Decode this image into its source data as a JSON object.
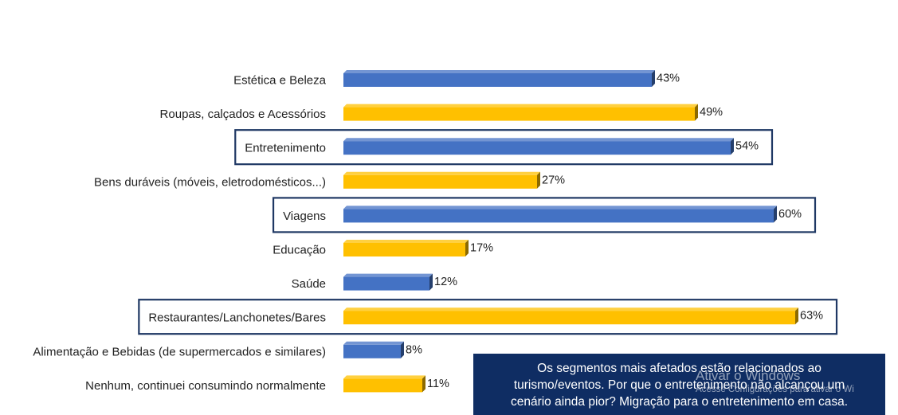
{
  "chart_data": {
    "type": "bar",
    "orientation": "horizontal",
    "categories": [
      "Estética e Beleza",
      "Roupas, calçados e Acessórios",
      "Entretenimento",
      "Bens duráveis (móveis, eletrodomésticos...)",
      "Viagens",
      "Educação",
      "Saúde",
      "Restaurantes/Lanchonetes/Bares",
      "Alimentação e Bebidas (de supermercados e similares)",
      "Nenhum, continuei consumindo normalmente"
    ],
    "values": [
      43,
      49,
      54,
      27,
      60,
      17,
      12,
      63,
      8,
      11
    ],
    "value_labels": [
      "43%",
      "49%",
      "54%",
      "27%",
      "60%",
      "17%",
      "12%",
      "63%",
      "8%",
      "11%"
    ],
    "bar_colors": [
      "#4472c4",
      "#ffc000",
      "#4472c4",
      "#ffc000",
      "#4472c4",
      "#ffc000",
      "#4472c4",
      "#ffc000",
      "#4472c4",
      "#ffc000"
    ],
    "highlighted": [
      false,
      false,
      true,
      false,
      true,
      false,
      false,
      true,
      false,
      false
    ],
    "highlight_color": "#1f3864",
    "unit": "%",
    "title": "",
    "xlabel": "",
    "ylabel": "",
    "xlim": [
      0,
      70
    ],
    "grid": false,
    "legend": "none"
  },
  "callout": {
    "line1": "Os segmentos mais afetados estão relacionados ao",
    "line2": "turismo/eventos. Por que o entretenimento não alcançou um",
    "line3": "cenário ainda pior? Migração para o entretenimento em casa.",
    "background": "#0f2d63"
  },
  "watermark": {
    "title": "Ativar o Windows",
    "subtitle": "Acesse Configurações para ativar o Wi"
  }
}
